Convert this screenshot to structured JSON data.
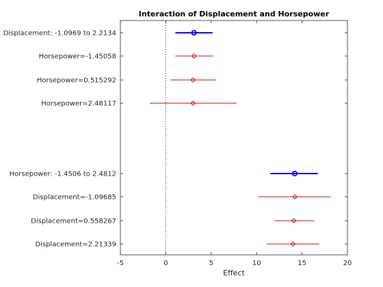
{
  "chart_data": {
    "type": "scatter",
    "title": "Interaction of Displacement and Horsepower",
    "xlabel": "Effect",
    "ylabel": "",
    "xlim": [
      -5,
      20
    ],
    "xticks": [
      -5,
      0,
      5,
      10,
      15,
      20
    ],
    "grid": false,
    "reference_line": {
      "x": 0,
      "style": "dotted"
    },
    "colors": {
      "main_effect": "#0000ff",
      "conditional_effect": "#d40000",
      "axis": "#262626"
    },
    "rows": [
      {
        "label": "Displacement: -1.0969 to 2.2134",
        "kind": "main",
        "estimate": 3.1,
        "lower": 1.05,
        "upper": 5.15
      },
      {
        "label": "Horsepower=-1.45058",
        "kind": "conditional",
        "estimate": 3.1,
        "lower": 1.05,
        "upper": 5.2
      },
      {
        "label": "Horsepower=0.515292",
        "kind": "conditional",
        "estimate": 3.0,
        "lower": 0.55,
        "upper": 5.55
      },
      {
        "label": "Horsepower=2.48117",
        "kind": "conditional",
        "estimate": 3.0,
        "lower": -1.75,
        "upper": 7.8
      },
      {
        "label": "Horsepower: -1.4506 to 2.4812",
        "kind": "main",
        "estimate": 14.2,
        "lower": 11.5,
        "upper": 16.75
      },
      {
        "label": "Displacement=-1.09685",
        "kind": "conditional",
        "estimate": 14.2,
        "lower": 10.2,
        "upper": 18.15
      },
      {
        "label": "Displacement=0.558267",
        "kind": "conditional",
        "estimate": 14.1,
        "lower": 11.95,
        "upper": 16.35
      },
      {
        "label": "Displacement=2.21339",
        "kind": "conditional",
        "estimate": 14.0,
        "lower": 11.15,
        "upper": 16.9
      }
    ]
  }
}
